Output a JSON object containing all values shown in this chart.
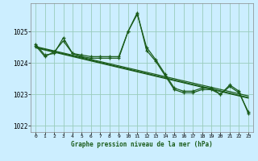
{
  "title": "Graphe pression niveau de la mer (hPa)",
  "background_color": "#cceeff",
  "grid_color": "#99ccbb",
  "line_color": "#1a5c1a",
  "xlim": [
    -0.5,
    23.5
  ],
  "ylim": [
    1021.8,
    1025.9
  ],
  "yticks": [
    1022,
    1023,
    1024,
    1025
  ],
  "xticks": [
    0,
    1,
    2,
    3,
    4,
    5,
    6,
    7,
    8,
    9,
    10,
    11,
    12,
    13,
    14,
    15,
    16,
    17,
    18,
    19,
    20,
    21,
    22,
    23
  ],
  "line1_x": [
    0,
    1,
    2,
    3,
    4,
    5,
    6,
    7,
    8,
    9,
    10,
    11,
    12,
    13,
    14,
    15,
    16,
    17,
    18,
    19,
    20,
    21,
    22,
    23
  ],
  "line1_y": [
    1024.6,
    1024.25,
    1024.3,
    1024.8,
    1024.3,
    1024.25,
    1024.2,
    1024.2,
    1024.2,
    1024.2,
    1025.0,
    1025.55,
    1024.5,
    1024.1,
    1023.65,
    1023.2,
    1023.1,
    1023.1,
    1023.2,
    1023.2,
    1023.0,
    1023.3,
    1023.1,
    1022.4
  ],
  "line2_x": [
    0,
    1,
    2,
    3,
    4,
    5,
    6,
    7,
    8,
    9,
    10,
    11,
    12,
    13,
    14,
    15,
    16,
    17,
    18,
    19,
    20,
    21,
    22,
    23
  ],
  "line2_y": [
    1024.55,
    1024.2,
    1024.35,
    1024.7,
    1024.3,
    1024.2,
    1024.15,
    1024.15,
    1024.15,
    1024.15,
    1025.0,
    1025.6,
    1024.4,
    1024.05,
    1023.6,
    1023.15,
    1023.05,
    1023.05,
    1023.15,
    1023.15,
    1023.0,
    1023.25,
    1023.05,
    1022.45
  ],
  "line3_x": [
    0,
    23
  ],
  "line3_y": [
    1024.52,
    1022.95
  ],
  "line4_x": [
    0,
    23
  ],
  "line4_y": [
    1024.48,
    1022.88
  ],
  "line5_x": [
    0,
    23
  ],
  "line5_y": [
    1024.5,
    1022.9
  ]
}
